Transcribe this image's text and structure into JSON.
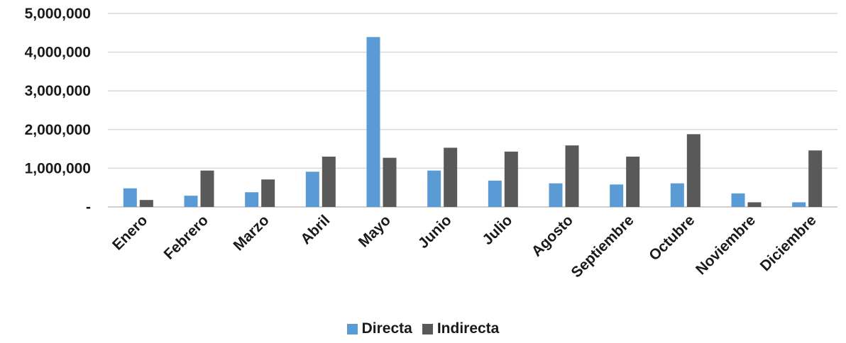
{
  "chart_data": {
    "type": "bar",
    "categories": [
      "Enero",
      "Febrero",
      "Marzo",
      "Abril",
      "Mayo",
      "Junio",
      "Julio",
      "Agosto",
      "Septiembre",
      "Octubre",
      "Noviembre",
      "Diciembre"
    ],
    "series": [
      {
        "name": "Directa",
        "color": "#5b9bd5",
        "values": [
          480000,
          290000,
          380000,
          910000,
          4390000,
          940000,
          680000,
          610000,
          580000,
          610000,
          350000,
          120000
        ]
      },
      {
        "name": "Indirecta",
        "color": "#595959",
        "values": [
          180000,
          940000,
          710000,
          1300000,
          1270000,
          1530000,
          1430000,
          1590000,
          1300000,
          1880000,
          120000,
          1460000
        ]
      }
    ],
    "yticks": [
      {
        "value": 0,
        "label": "-"
      },
      {
        "value": 1000000,
        "label": "1,000,000"
      },
      {
        "value": 2000000,
        "label": "2,000,000"
      },
      {
        "value": 3000000,
        "label": "3,000,000"
      },
      {
        "value": 4000000,
        "label": "4,000,000"
      },
      {
        "value": 5000000,
        "label": "5,000,000"
      }
    ],
    "ylim": [
      0,
      5000000
    ],
    "grid": true,
    "legend_position": "bottom",
    "title": "",
    "xlabel": "",
    "ylabel": ""
  }
}
